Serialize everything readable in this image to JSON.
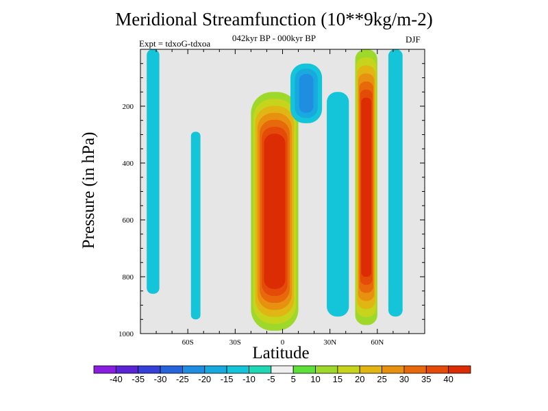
{
  "chart_data": {
    "type": "contour",
    "title": "Meridional Streamfunction (10**9kg/m-2)",
    "subtitle": "042kyr BP - 000kyr BP",
    "experiment_label": "Expt = tdxoG-tdxoa",
    "season": "DJF",
    "xlabel": "Latitude",
    "ylabel": "Pressure (in hPa)",
    "xlim": [
      -90,
      90
    ],
    "ylim": [
      1000,
      0
    ],
    "x_ticks": [
      -60,
      -30,
      0,
      30,
      60
    ],
    "x_tick_labels": [
      "60S",
      "30S",
      "0",
      "30N",
      "60N"
    ],
    "y_ticks": [
      200,
      400,
      600,
      800,
      1000
    ],
    "y_tick_labels": [
      "200",
      "400",
      "600",
      "800",
      "1000"
    ],
    "background_color": "#e6e6e6",
    "colorbar": {
      "tick_labels": [
        "-40",
        "-35",
        "-30",
        "-25",
        "-20",
        "-15",
        "-10",
        "-5",
        "5",
        "10",
        "15",
        "20",
        "25",
        "30",
        "35",
        "40"
      ],
      "colors": [
        "#8a1ee0",
        "#5a23d6",
        "#3540d8",
        "#2664dc",
        "#1f8ee0",
        "#18a9df",
        "#14c4d8",
        "#1ed8b4",
        "#efefef",
        "#5ee03a",
        "#9ed82a",
        "#c6d41c",
        "#e1b514",
        "#e89010",
        "#e8680c",
        "#e44a08",
        "#dc2c04"
      ]
    },
    "features": [
      {
        "feature": "tropical positive cell (max)",
        "lat_range": [
          -20,
          10
        ],
        "p_range": [
          150,
          990
        ],
        "peak_value": 40
      },
      {
        "feature": "northern mid-latitude positive column",
        "lat_range": [
          46,
          60
        ],
        "p_range": [
          0,
          970
        ],
        "peak_value": 40
      },
      {
        "feature": "upper-level negative cell",
        "lat_range": [
          5,
          25
        ],
        "p_range": [
          50,
          260
        ],
        "peak_value": -20
      },
      {
        "feature": "negative column",
        "lat_range": [
          28,
          42
        ],
        "p_range": [
          150,
          940
        ],
        "peak_value": -10
      },
      {
        "feature": "southern high-latitude negative column",
        "lat_range": [
          -86,
          -78
        ],
        "p_range": [
          0,
          860
        ],
        "peak_value": -10
      },
      {
        "feature": "southern mid-latitude negative column",
        "lat_range": [
          -58,
          -52
        ],
        "p_range": [
          290,
          950
        ],
        "peak_value": -10
      },
      {
        "feature": "high-latitude negative column",
        "lat_range": [
          67,
          76
        ],
        "p_range": [
          0,
          940
        ],
        "peak_value": -10
      }
    ]
  }
}
